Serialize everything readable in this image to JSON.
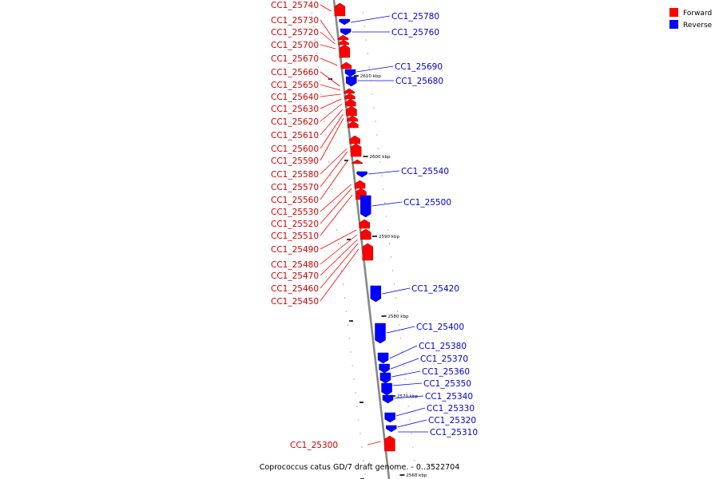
{
  "caption": "Coprococcus catus GD/7 draft genome. - 0..3522704",
  "legend": [
    {
      "label": "Forward",
      "color": "#ff0000"
    },
    {
      "label": "Reverse",
      "color": "#0000ff"
    }
  ],
  "colors": {
    "forward": "#ff0000",
    "reverse": "#0000ff",
    "axis": "#888888"
  },
  "kbp_marks": [
    "2610 kbp",
    "2600 kbp",
    "2590 kbp",
    "2580 kbp",
    "2570 kbp",
    "2560 kbp"
  ],
  "forward_genes": [
    "CC1_25740",
    "CC1_25730",
    "CC1_25720",
    "CC1_25700",
    "CC1_25670",
    "CC1_25660",
    "CC1_25650",
    "CC1_25640",
    "CC1_25630",
    "CC1_25620",
    "CC1_25610",
    "CC1_25600",
    "CC1_25590",
    "CC1_25580",
    "CC1_25570",
    "CC1_25560",
    "CC1_25530",
    "CC1_25520",
    "CC1_25510",
    "CC1_25490",
    "CC1_25480",
    "CC1_25470",
    "CC1_25460",
    "CC1_25450",
    "CC1_25300"
  ],
  "reverse_genes": [
    "CC1_25780",
    "CC1_25760",
    "CC1_25690",
    "CC1_25680",
    "CC1_25540",
    "CC1_25500",
    "CC1_25420",
    "CC1_25400",
    "CC1_25380",
    "CC1_25370",
    "CC1_25360",
    "CC1_25350",
    "CC1_25340",
    "CC1_25330",
    "CC1_25320",
    "CC1_25310"
  ]
}
